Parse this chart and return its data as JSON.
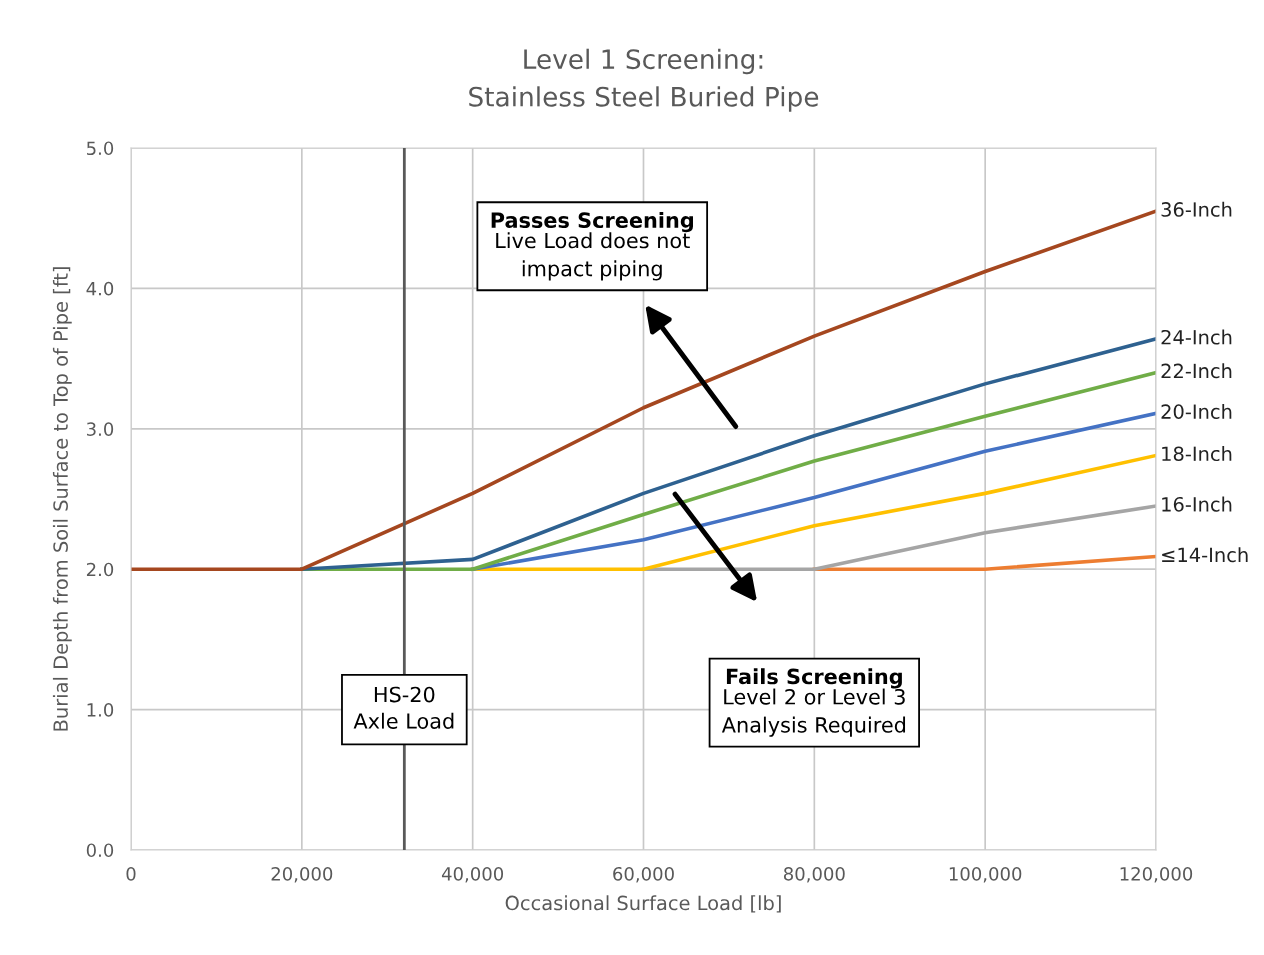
{
  "chart_data": {
    "type": "line",
    "title": "Level 1 Screening:\nStainless Steel Buried Pipe",
    "xlabel": "Occasional Surface Load [lb]",
    "ylabel": "Burial Depth from Soil Surface to Top of Pipe [ft]",
    "xlim": [
      0,
      120000
    ],
    "xticks": [
      {
        "value": 0,
        "label": "0"
      },
      {
        "value": 20000,
        "label": "20,000"
      },
      {
        "value": 40000,
        "label": "40,000"
      },
      {
        "value": 60000,
        "label": "60,000"
      },
      {
        "value": 80000,
        "label": "80,000"
      },
      {
        "value": 100000,
        "label": "100,000"
      },
      {
        "value": 120000,
        "label": "120,000"
      }
    ],
    "ylim": [
      0,
      5
    ],
    "yticks": [
      {
        "value": 0,
        "label": "0.0"
      },
      {
        "value": 1,
        "label": "1.0"
      },
      {
        "value": 2,
        "label": "2.0"
      },
      {
        "value": 3,
        "label": "3.0"
      },
      {
        "value": 4,
        "label": "4.0"
      },
      {
        "value": 5,
        "label": "5.0"
      }
    ],
    "x": [
      0,
      20000,
      40000,
      60000,
      80000,
      100000,
      120000
    ],
    "series": [
      {
        "name": "≤14-Inch",
        "color": "#ed7d31",
        "values": [
          null,
          null,
          null,
          null,
          2,
          2,
          2.09
        ]
      },
      {
        "name": "16-Inch",
        "color": "#a5a5a5",
        "values": [
          null,
          null,
          null,
          2,
          2,
          2.26,
          2.45
        ]
      },
      {
        "name": "18-Inch",
        "color": "#ffc000",
        "values": [
          null,
          null,
          2,
          2,
          2.31,
          2.54,
          2.81
        ]
      },
      {
        "name": "20-Inch",
        "color": "#4472c4",
        "values": [
          null,
          null,
          2,
          2.21,
          2.51,
          2.84,
          3.11
        ]
      },
      {
        "name": "22-Inch",
        "color": "#70ad47",
        "values": [
          null,
          2,
          2,
          2.39,
          2.77,
          3.09,
          3.4
        ]
      },
      {
        "name": "24-Inch",
        "color": "#2e6190",
        "values": [
          null,
          2,
          2.07,
          2.54,
          2.95,
          3.32,
          3.64
        ]
      },
      {
        "name": "36-Inch",
        "color": "#a5471f",
        "values": [
          2,
          2,
          2.54,
          3.15,
          3.66,
          4.12,
          4.55
        ]
      }
    ],
    "ref_lines": [
      {
        "axis": "x",
        "value": 32000,
        "label": "HS-20\nAxle Load",
        "color": "#595959"
      }
    ],
    "annotations": [
      "Passes Screening\nLive Load does not\nimpact piping",
      "Fails Screening\nLevel 2 or Level 3\nAnalysis Required"
    ],
    "grid": true,
    "legend": false,
    "marker": "none",
    "line_style": "solid"
  }
}
